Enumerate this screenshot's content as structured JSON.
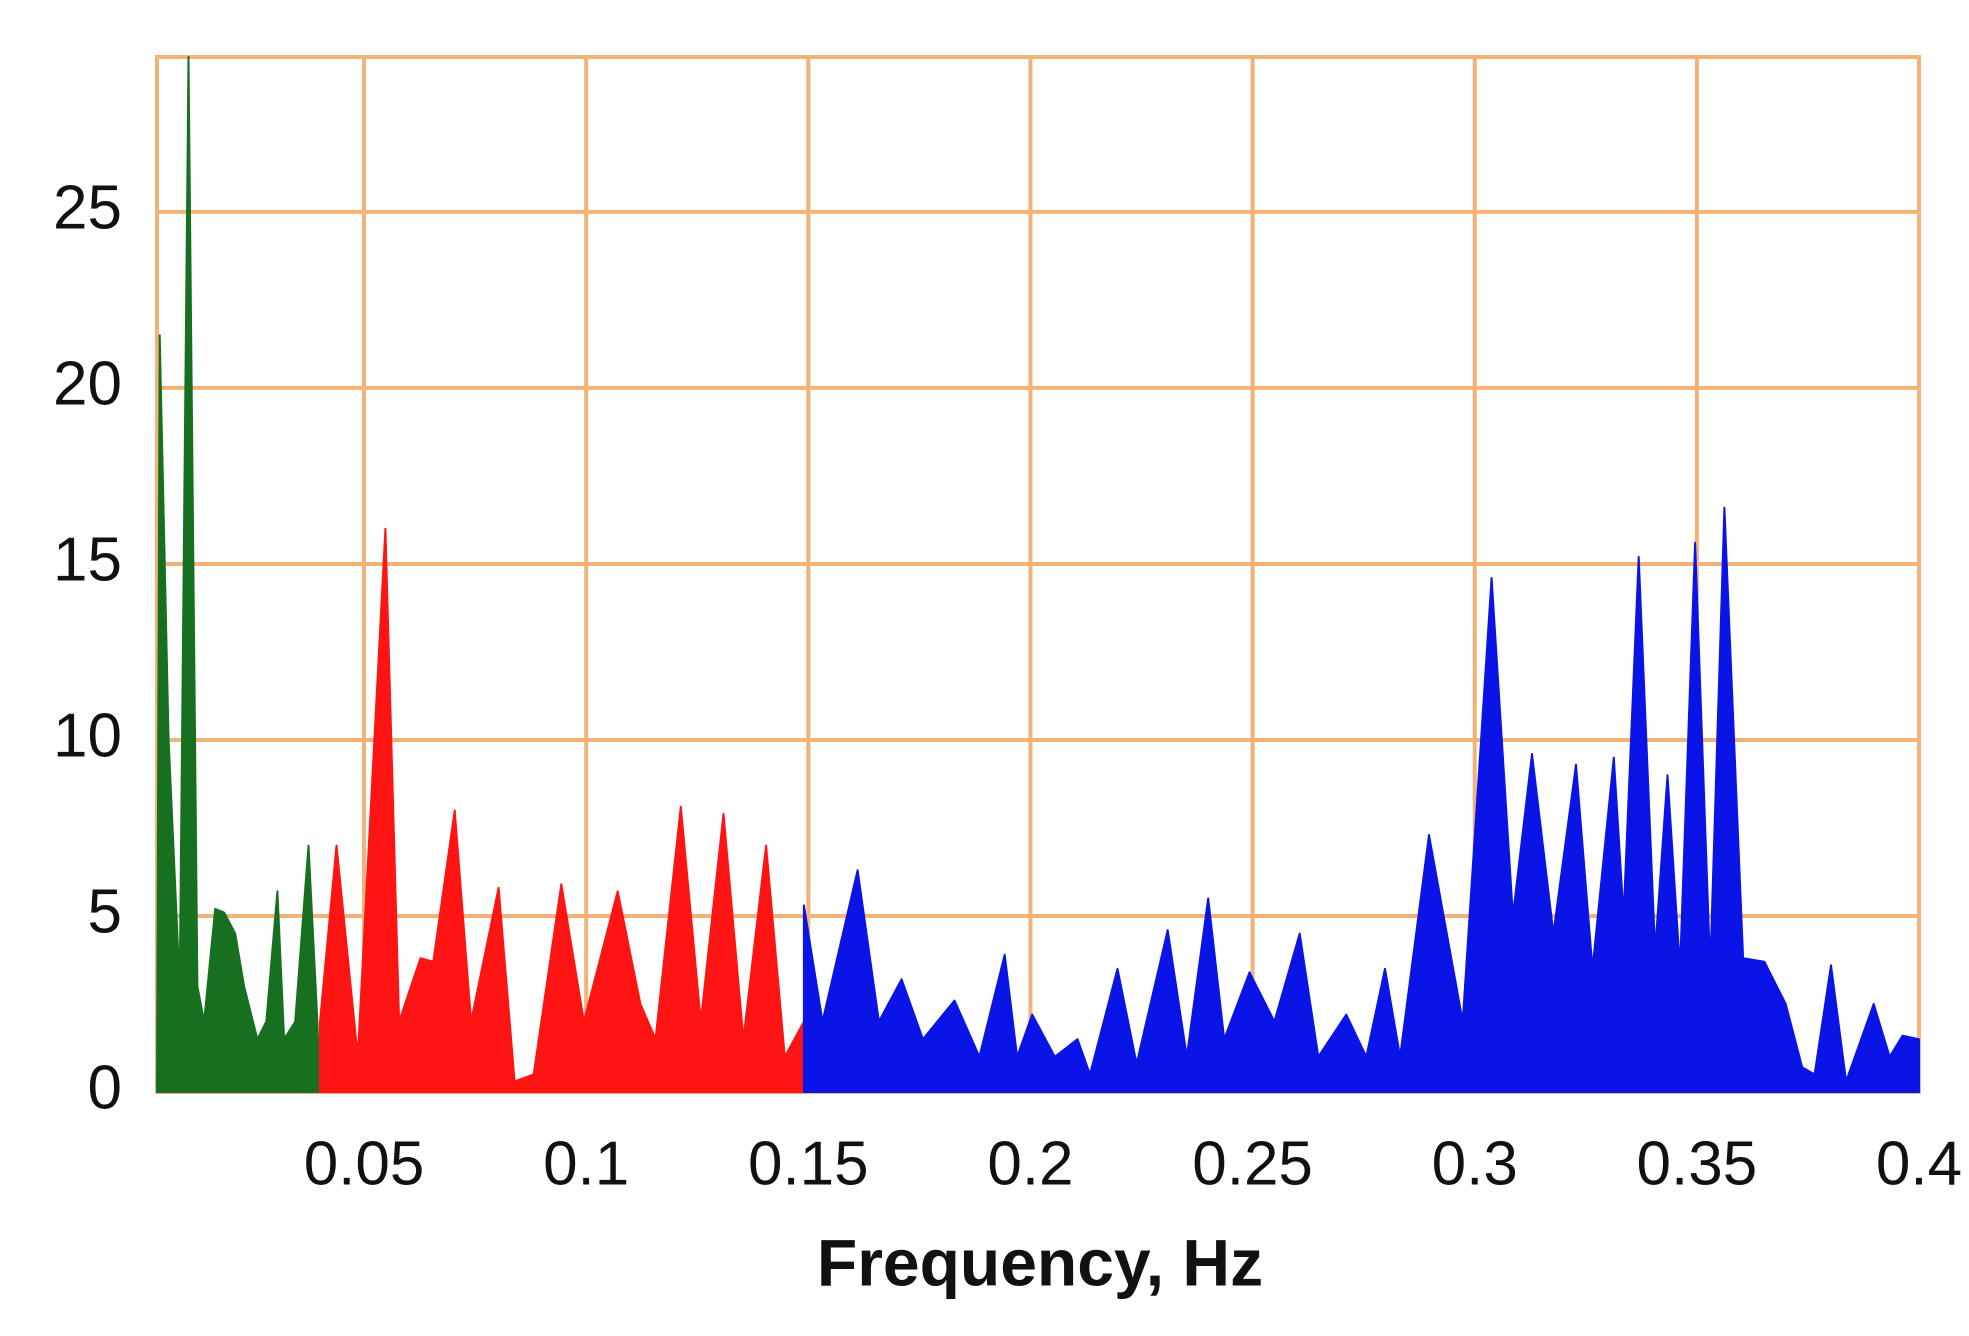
{
  "chart_data": {
    "type": "area",
    "x_label": "Frequency, Hz",
    "xlim": [
      0.0034,
      0.4
    ],
    "ylim": [
      0,
      29.4
    ],
    "xticks": [
      0.05,
      0.1,
      0.15,
      0.2,
      0.25,
      0.3,
      0.35,
      0.4
    ],
    "yticks": [
      0,
      5,
      10,
      15,
      20,
      25
    ],
    "grid": true,
    "grid_color": "#f2b278",
    "series": [
      {
        "color": "#17701f",
        "x": [
          0.0034,
          0.004,
          0.006,
          0.0085,
          0.0105,
          0.0125,
          0.014,
          0.0165,
          0.0185,
          0.021,
          0.023,
          0.026,
          0.028,
          0.0305,
          0.032,
          0.0345,
          0.0375,
          0.0395,
          0.0401
        ],
        "values": [
          0,
          21.5,
          10,
          3,
          29.4,
          3,
          2,
          5.2,
          5.1,
          4.5,
          3,
          1.5,
          2,
          5.7,
          1.5,
          2,
          7,
          2,
          0
        ]
      },
      {
        "color": "#ff1414",
        "x": [
          0.0401,
          0.0438,
          0.0486,
          0.0548,
          0.0579,
          0.0627,
          0.0656,
          0.0704,
          0.0741,
          0.0803,
          0.0839,
          0.0882,
          0.0944,
          0.0995,
          0.1071,
          0.1122,
          0.1156,
          0.1213,
          0.1258,
          0.1309,
          0.1354,
          0.1405,
          0.1447,
          0.149
        ],
        "values": [
          2,
          7,
          1,
          16,
          2,
          3.8,
          3.7,
          8,
          2,
          5.8,
          0.3,
          0.5,
          5.9,
          2,
          5.7,
          2.5,
          1.5,
          8.1,
          2,
          7.9,
          1.5,
          7,
          1,
          2
        ]
      },
      {
        "color": "#0a14e6",
        "x": [
          0.149,
          0.1532,
          0.1611,
          0.1659,
          0.171,
          0.1758,
          0.1829,
          0.1885,
          0.1942,
          0.197,
          0.2004,
          0.2055,
          0.2106,
          0.2134,
          0.2196,
          0.2239,
          0.2309,
          0.2352,
          0.24,
          0.2436,
          0.2493,
          0.2549,
          0.2606,
          0.2648,
          0.2711,
          0.2756,
          0.2798,
          0.2832,
          0.2897,
          0.2973,
          0.3038,
          0.3086,
          0.3129,
          0.3177,
          0.3228,
          0.3265,
          0.3313,
          0.3335,
          0.3369,
          0.3406,
          0.3434,
          0.3462,
          0.3496,
          0.353,
          0.3562,
          0.3604,
          0.3652,
          0.37,
          0.3737,
          0.3765,
          0.3802,
          0.3836,
          0.3898,
          0.3934,
          0.3963,
          0.4
        ],
        "values": [
          5.3,
          2,
          6.3,
          2,
          3.2,
          1.5,
          2.6,
          1,
          3.9,
          1,
          2.2,
          1,
          1.5,
          0.5,
          3.5,
          0.8,
          4.6,
          1,
          5.5,
          1.5,
          3.4,
          2,
          4.5,
          1,
          2.2,
          1,
          3.5,
          1,
          7.3,
          2,
          14.6,
          5,
          9.6,
          4.5,
          9.3,
          3.5,
          9.5,
          5,
          15.2,
          4,
          9,
          3.5,
          15.6,
          3.5,
          16.6,
          3.8,
          3.7,
          2.5,
          0.7,
          0.5,
          3.6,
          0.3,
          2.5,
          1,
          1.6,
          1.5
        ]
      }
    ]
  }
}
